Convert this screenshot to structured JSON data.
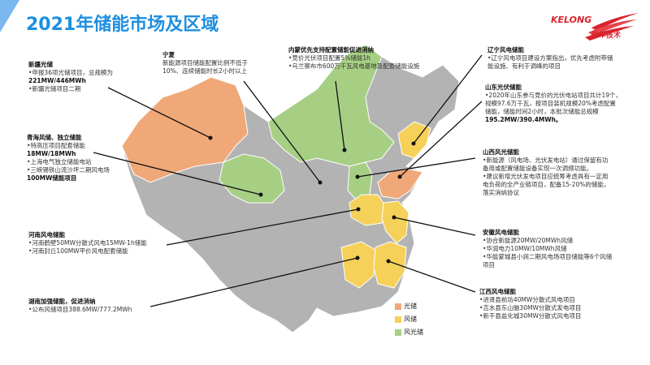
{
  "title": "2021年储能市场及区域",
  "logo": {
    "en": "KELONG",
    "cn": "科华技术"
  },
  "colors": {
    "title": "#1d8fe0",
    "solar": "#f0a878",
    "wind": "#f5d15a",
    "wind_solar": "#a6cf84",
    "other": "#b3b3b3"
  },
  "legend": [
    {
      "label": "光储",
      "color": "#f0a878"
    },
    {
      "label": "风储",
      "color": "#f5d15a"
    },
    {
      "label": "风光储",
      "color": "#a6cf84"
    }
  ],
  "notes": {
    "xinjiang": {
      "heading": "新疆光储",
      "lines": [
        "•申报36项光储项目，总规模为",
        "221MW/446MWh",
        "•新疆光储项目二期"
      ]
    },
    "ningxia": {
      "heading": "宁夏",
      "lines": [
        "新能源项目储能配置比例不低于",
        "10%、连续储能时长2小时以上"
      ]
    },
    "neimeng": {
      "heading": "内蒙优先支持配置储能促进消纳",
      "lines": [
        "•竞价光伏项目配置5%储能1h",
        "•乌兰察布市600万千瓦风电基地及配套储能设施"
      ]
    },
    "liaoning": {
      "heading": "辽宁风电储能",
      "lines": [
        "•辽宁风电项目建设方案指出，优先考虑附带储",
        "能设施、有利于调峰的项目"
      ]
    },
    "shandong": {
      "heading": "山东光伏储能",
      "lines": [
        "•2020年山东参与竞价的光伏电站项目共计19个，",
        "规模97.6万千瓦，按项目装机规模20%考虑配置",
        "储能，储能时间2小时，本批次储能总规模",
        "195.2MW/390.4MWh。"
      ]
    },
    "qinghai": {
      "heading": "青海风储、独立储能",
      "lines": [
        "•特高压项目配套储能",
        "18MW/18MWh",
        "•上海电气独立储能电站",
        "•三峡锡铁山流沙坪二期风电场",
        "100MW储能项目"
      ]
    },
    "shanxi": {
      "heading": "山西风光储能",
      "lines": [
        "•新能源（风电场、光伏发电站）通过保留有功",
        "备用或配置储能设备实现一次调频功能。",
        "•建议新增光伏发电项目应统筹考虑具有一定用",
        "电负荷的全产业链项目，配备15-20%的储能，",
        "落实消纳协议"
      ]
    },
    "henan": {
      "heading": "河南风电储能",
      "lines": [
        "•河南鹤壁50MW分散式风电15MW-1h储能",
        "•河南封丘100MW平价风电配套储能"
      ]
    },
    "anhui": {
      "heading": "安徽风电储能",
      "lines": [
        "•协合新能源20MW/20MWh风储",
        "•华润电力10MW/10MWh风储",
        "•华能蒙城县小涧二期风电场项目储能等6个风储",
        "项目"
      ]
    },
    "jiangxi": {
      "heading": "江西风电储能",
      "lines": [
        "•进贤县前坊40MW分散式风电项目",
        "•吉水县东山脑30MW分散式发电项目",
        "•新干县盐化城30MW分散式风电项目"
      ]
    },
    "hunan": {
      "heading": "湖南加强储能，促进消纳",
      "lines": [
        "•公布风储项目388.6MW/777.2MWh"
      ]
    }
  }
}
